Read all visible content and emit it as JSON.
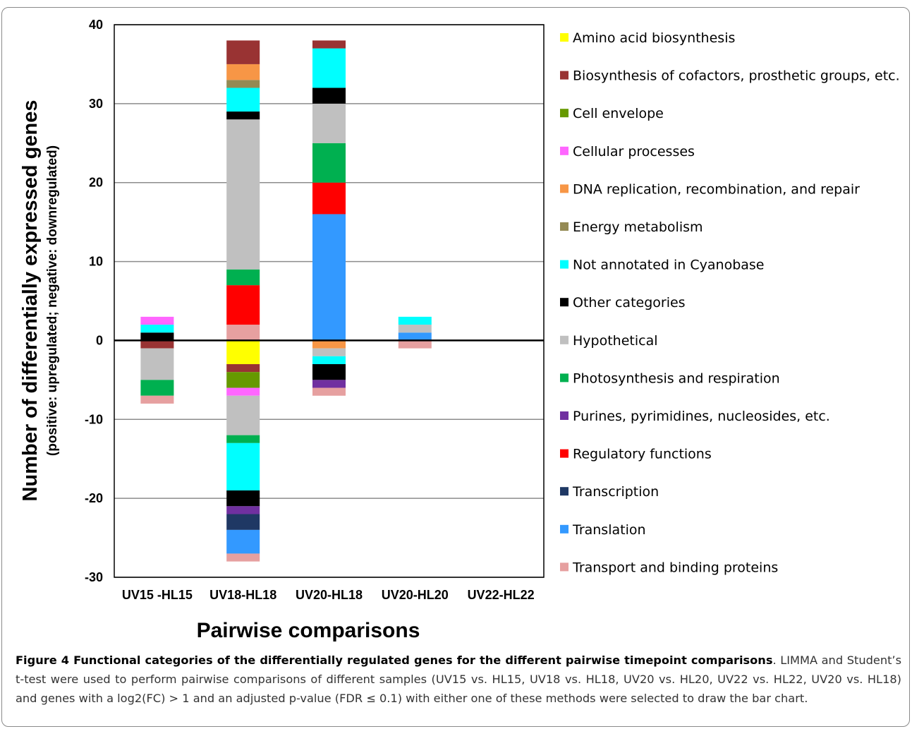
{
  "chart_data": {
    "type": "bar",
    "stacked": true,
    "xlabel": "Pairwise comparisons",
    "ylabel": "Number of differentially expressed genes",
    "ylabel_sub": "(positive: upregulated; negative: downregulated)",
    "ylim": [
      -30,
      40
    ],
    "yticks": [
      "40",
      "30",
      "20",
      "10",
      "0",
      "-10",
      "-20",
      "-30"
    ],
    "grid": true,
    "legend_position": "right",
    "categories": [
      "UV15 -HL15",
      "UV18-HL18",
      "UV20-HL18",
      "UV20-HL20",
      "UV22-HL22"
    ],
    "series": [
      {
        "name": "Amino acid biosynthesis",
        "color": "#ffff00",
        "up": [
          0,
          0,
          0,
          0,
          0
        ],
        "down": [
          0,
          -3,
          0,
          0,
          0
        ]
      },
      {
        "name": "Biosynthesis of cofactors, prosthetic groups, etc.",
        "color": "#993333",
        "up": [
          0,
          3,
          1,
          0,
          0
        ],
        "down": [
          -1,
          -1,
          0,
          0,
          0
        ]
      },
      {
        "name": "Cell envelope",
        "color": "#669900",
        "up": [
          0,
          0,
          0,
          0,
          0
        ],
        "down": [
          0,
          -2,
          0,
          0,
          0
        ]
      },
      {
        "name": "Cellular processes",
        "color": "#ff66ff",
        "up": [
          1,
          0,
          0,
          0,
          0
        ],
        "down": [
          0,
          -1,
          0,
          0,
          0
        ]
      },
      {
        "name": "DNA replication, recombination, and repair",
        "color": "#f79646",
        "up": [
          0,
          2,
          0,
          0,
          0
        ],
        "down": [
          0,
          0,
          -1,
          0,
          0
        ]
      },
      {
        "name": "Energy metabolism",
        "color": "#948a54",
        "up": [
          0,
          1,
          0,
          0,
          0
        ],
        "down": [
          0,
          0,
          0,
          0,
          0
        ]
      },
      {
        "name": "Not annotated in Cyanobase",
        "color": "#00ffff",
        "up": [
          1,
          3,
          5,
          1,
          0
        ],
        "down": [
          0,
          -6,
          -1,
          0,
          0
        ]
      },
      {
        "name": "Other categories",
        "color": "#000000",
        "up": [
          1,
          1,
          2,
          0,
          0
        ],
        "down": [
          0,
          -2,
          -2,
          0,
          0
        ]
      },
      {
        "name": "Hypothetical",
        "color": "#c0c0c0",
        "up": [
          0,
          19,
          5,
          1,
          0
        ],
        "down": [
          -4,
          -5,
          -1,
          0,
          0
        ]
      },
      {
        "name": "Photosynthesis and respiration",
        "color": "#00b050",
        "up": [
          0,
          2,
          5,
          0,
          0
        ],
        "down": [
          -2,
          -1,
          0,
          0,
          0
        ]
      },
      {
        "name": "Purines, pyrimidines, nucleosides, etc.",
        "color": "#7030a0",
        "up": [
          0,
          0,
          0,
          0,
          0
        ],
        "down": [
          0,
          -1,
          -1,
          0,
          0
        ]
      },
      {
        "name": "Regulatory functions",
        "color": "#ff0000",
        "up": [
          0,
          5,
          4,
          0,
          0
        ],
        "down": [
          0,
          0,
          0,
          0,
          0
        ]
      },
      {
        "name": "Transcription",
        "color": "#1f3864",
        "up": [
          0,
          0,
          0,
          0,
          0
        ],
        "down": [
          0,
          -2,
          0,
          0,
          0
        ]
      },
      {
        "name": "Translation",
        "color": "#3399ff",
        "up": [
          0,
          0,
          16,
          1,
          0
        ],
        "down": [
          0,
          -3,
          0,
          0,
          0
        ]
      },
      {
        "name": "Transport and binding proteins",
        "color": "#e6a0a0",
        "up": [
          0,
          2,
          0,
          0,
          0
        ],
        "down": [
          -1,
          -1,
          -1,
          -1,
          0
        ]
      }
    ],
    "up_order": [
      "Transport and binding proteins",
      "Translation",
      "Regulatory functions",
      "Photosynthesis and respiration",
      "Hypothetical",
      "Other categories",
      "Not annotated in Cyanobase",
      "Energy metabolism",
      "DNA replication, recombination, and repair",
      "Cellular processes",
      "Biosynthesis of cofactors, prosthetic groups, etc."
    ],
    "down_order": [
      "Amino acid biosynthesis",
      "DNA replication, recombination, and repair",
      "Biosynthesis of cofactors, prosthetic groups, etc.",
      "Cell envelope",
      "Cellular processes",
      "Hypothetical",
      "Photosynthesis and respiration",
      "Not annotated in Cyanobase",
      "Other categories",
      "Purines, pyrimidines, nucleosides, etc.",
      "Transcription",
      "Translation",
      "Transport and binding proteins"
    ]
  },
  "caption": {
    "bold": "Figure 4 Functional categories of the differentially regulated genes for the different pairwise timepoint comparisons",
    "text": ". LIMMA and Student’s t-test were used to perform pairwise comparisons of different samples (UV15 vs. HL15, UV18 vs. HL18, UV20 vs. HL20, UV22 vs. HL22, UV20 vs. HL18) and genes with a log2(FC) > 1 and an adjusted p-value (FDR ≤ 0.1) with either one of these methods were selected to draw the bar chart."
  }
}
